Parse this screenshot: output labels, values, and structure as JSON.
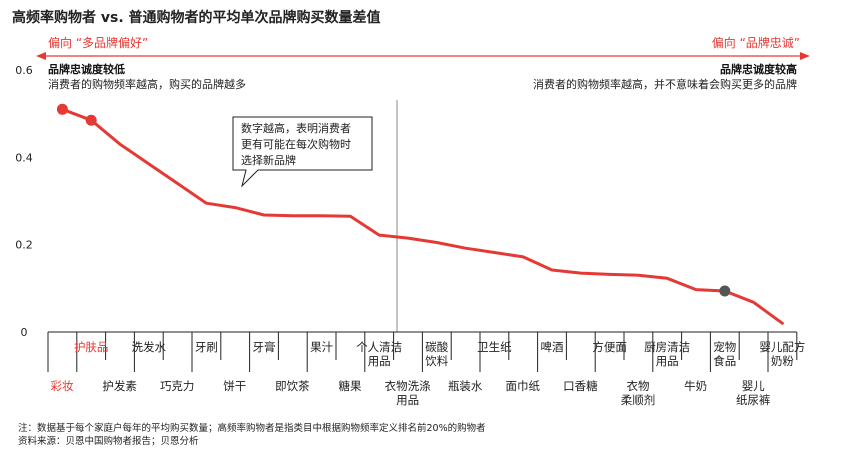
{
  "chart_data": {
    "type": "line",
    "title": "高频率购物者 vs. 普通购物者的平均单次品牌购买数量差值",
    "left_direction": "偏向 “多品牌偏好”",
    "right_direction": "偏向 “品牌忠诚”",
    "left_zone": {
      "title": "品牌忠诚度较低",
      "desc": "消费者的购物频率越高，购买的品牌越多"
    },
    "right_zone": {
      "title": "品牌忠诚度较高",
      "desc": "消费者的购物频率越高，并不意味着会购买更多的品牌"
    },
    "annotation": [
      "数字越高，表明消费者",
      "更有可能在每次购物时",
      "选择新品牌"
    ],
    "yticks": [
      "0",
      "0.2",
      "0.4",
      "0.6"
    ],
    "ylim": [
      0,
      0.6
    ],
    "grid": false,
    "categories": [
      {
        "label": [
          "彩妆"
        ],
        "row": "lower",
        "highlight": true
      },
      {
        "label": [
          "护肤品"
        ],
        "row": "upper",
        "highlight": true
      },
      {
        "label": [
          "护发素"
        ],
        "row": "lower"
      },
      {
        "label": [
          "洗发水"
        ],
        "row": "upper"
      },
      {
        "label": [
          "巧克力"
        ],
        "row": "lower"
      },
      {
        "label": [
          "牙刷"
        ],
        "row": "upper"
      },
      {
        "label": [
          "饼干"
        ],
        "row": "lower"
      },
      {
        "label": [
          "牙膏"
        ],
        "row": "upper"
      },
      {
        "label": [
          "即饮茶"
        ],
        "row": "lower"
      },
      {
        "label": [
          "果汁"
        ],
        "row": "upper"
      },
      {
        "label": [
          "糖果"
        ],
        "row": "lower"
      },
      {
        "label": [
          "个人清洁",
          "用品"
        ],
        "row": "upper"
      },
      {
        "label": [
          "衣物洗涤",
          "用品"
        ],
        "row": "lower"
      },
      {
        "label": [
          "碳酸",
          "饮料"
        ],
        "row": "upper"
      },
      {
        "label": [
          "瓶装水"
        ],
        "row": "lower"
      },
      {
        "label": [
          "卫生纸"
        ],
        "row": "upper"
      },
      {
        "label": [
          "面巾纸"
        ],
        "row": "lower"
      },
      {
        "label": [
          "啤酒"
        ],
        "row": "upper"
      },
      {
        "label": [
          "口香糖"
        ],
        "row": "lower"
      },
      {
        "label": [
          "方便面"
        ],
        "row": "upper"
      },
      {
        "label": [
          "衣物",
          "柔顺剂"
        ],
        "row": "lower"
      },
      {
        "label": [
          "厨房清洁",
          "用品"
        ],
        "row": "upper"
      },
      {
        "label": [
          "牛奶"
        ],
        "row": "lower"
      },
      {
        "label": [
          "宠物",
          "食品"
        ],
        "row": "upper",
        "highlight_point": true
      },
      {
        "label": [
          "婴儿",
          "纸尿裤"
        ],
        "row": "lower"
      },
      {
        "label": [
          "婴儿配方",
          "奶粉"
        ],
        "row": "upper"
      }
    ],
    "values": [
      0.51,
      0.485,
      0.43,
      0.385,
      0.34,
      0.295,
      0.285,
      0.268,
      0.266,
      0.266,
      0.265,
      0.222,
      0.215,
      0.205,
      0.192,
      0.182,
      0.172,
      0.142,
      0.135,
      0.132,
      0.13,
      0.123,
      0.097,
      0.094,
      0.068,
      0.02
    ],
    "marker_indices": [
      0,
      1,
      23
    ],
    "colors": {
      "line": "#e53935",
      "marker_red": "#e53935",
      "marker_grey": "#555555",
      "divider": "#888888",
      "axis": "#222222"
    }
  },
  "footnotes": [
    "注：数据基于每个家庭户每年的平均购买数量；高频率购物者是指类目中根据购物频率定义排名前20%的购物者",
    "资料来源：贝恩中国购物者报告；贝恩分析"
  ]
}
